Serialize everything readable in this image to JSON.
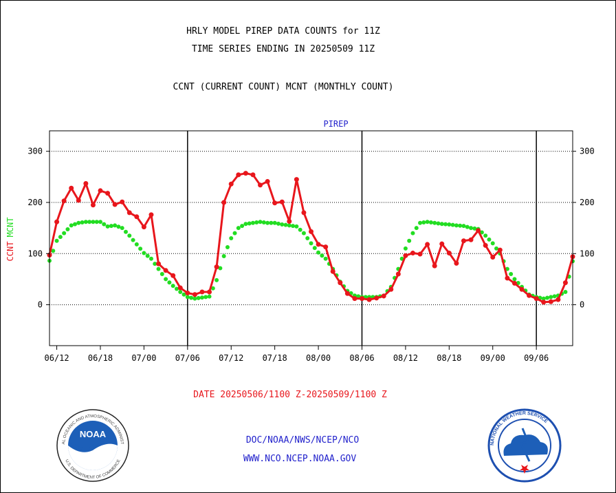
{
  "header": {
    "title1": "HRLY MODEL PIREP DATA COUNTS for 11Z",
    "title2": "TIME SERIES ENDING IN 20250509 11Z",
    "subtitle": "CCNT (CURRENT COUNT) MCNT (MONTHLY COUNT)"
  },
  "footer": {
    "date_range": "DATE 20250506/1100 Z-20250509/1100 Z",
    "line1": "DOC/NOAA/NWS/NCEP/NCO",
    "line2": "WWW.NCO.NCEP.NOAA.GOV"
  },
  "logos": {
    "noaa_text": "NOAA",
    "noaa_ring_top": "NATIONAL OCEANIC AND ATMOSPHERIC ADMINISTRATION",
    "noaa_ring_bottom": "U.S. DEPARTMENT OF COMMERCE",
    "nws_ring": "NATIONAL WEATHER SERVICE"
  },
  "colors": {
    "ccnt": "#e8161c",
    "mcnt": "#22dd22",
    "panel_title": "#2222cc",
    "footer_blue": "#2222cc"
  },
  "chart_data": {
    "type": "line",
    "title": "PIREP",
    "ylabel_ccnt": "CCNT",
    "ylabel_mcnt": "MCNT",
    "ylim": [
      -80,
      340
    ],
    "yticks": [
      0,
      100,
      200,
      300
    ],
    "xlim": [
      0,
      72
    ],
    "xtick_labels": [
      "06/12",
      "06/18",
      "07/00",
      "07/06",
      "07/12",
      "07/18",
      "08/00",
      "08/06",
      "08/12",
      "08/18",
      "09/00",
      "09/06"
    ],
    "xticks": [
      1,
      7,
      13,
      19,
      25,
      31,
      37,
      43,
      49,
      55,
      61,
      67
    ],
    "day_dividers": [
      19,
      43,
      67
    ],
    "grid": true,
    "series": [
      {
        "name": "CCNT",
        "color": "#e8161c",
        "x": [
          0,
          1,
          2,
          3,
          4,
          5,
          6,
          7,
          8,
          9,
          10,
          11,
          12,
          13,
          14,
          15,
          16,
          17,
          18,
          19,
          20,
          21,
          22,
          23,
          24,
          25,
          26,
          27,
          28,
          29,
          30,
          31,
          32,
          33,
          34,
          35,
          36,
          37,
          38,
          39,
          40,
          41,
          42,
          43,
          44,
          45,
          46,
          47,
          48,
          49,
          50,
          51,
          52,
          53,
          54,
          55,
          56,
          57,
          58,
          59,
          60,
          61,
          62,
          63,
          64,
          65,
          66,
          67,
          68,
          69,
          70,
          71,
          72
        ],
        "values": [
          97,
          162,
          203,
          228,
          204,
          237,
          195,
          223,
          218,
          196,
          201,
          180,
          172,
          152,
          176,
          80,
          67,
          57,
          33,
          23,
          20,
          25,
          25,
          74,
          200,
          236,
          254,
          257,
          254,
          234,
          241,
          199,
          201,
          163,
          245,
          180,
          143,
          118,
          113,
          65,
          43,
          22,
          12,
          12,
          10,
          13,
          17,
          30,
          60,
          96,
          101,
          99,
          118,
          76,
          119,
          101,
          81,
          125,
          127,
          145,
          116,
          93,
          107,
          52,
          42,
          30,
          18,
          12,
          5,
          6,
          10,
          43,
          94
        ]
      },
      {
        "name": "MCNT",
        "color": "#22dd22",
        "x": [
          0,
          1,
          2,
          3,
          4,
          5,
          6,
          7,
          8,
          9,
          10,
          11,
          12,
          13,
          14,
          15,
          16,
          17,
          18,
          19,
          20,
          21,
          22,
          23,
          24,
          25,
          26,
          27,
          28,
          29,
          30,
          31,
          32,
          33,
          34,
          35,
          36,
          37,
          38,
          39,
          40,
          41,
          42,
          43,
          44,
          45,
          46,
          47,
          48,
          49,
          50,
          51,
          52,
          53,
          54,
          55,
          56,
          57,
          58,
          59,
          60,
          61,
          62,
          63,
          64,
          65,
          66,
          67,
          68,
          69,
          70,
          71,
          72
        ],
        "values": [
          86,
          125,
          140,
          155,
          160,
          162,
          162,
          162,
          153,
          155,
          150,
          135,
          118,
          101,
          90,
          70,
          50,
          37,
          25,
          15,
          12,
          14,
          16,
          48,
          95,
          130,
          150,
          158,
          160,
          162,
          160,
          160,
          157,
          155,
          153,
          140,
          120,
          102,
          90,
          70,
          45,
          27,
          18,
          15,
          15,
          15,
          18,
          35,
          70,
          110,
          140,
          160,
          162,
          160,
          158,
          157,
          155,
          154,
          150,
          148,
          135,
          120,
          100,
          70,
          50,
          35,
          20,
          15,
          12,
          15,
          18,
          25,
          85
        ]
      }
    ]
  }
}
